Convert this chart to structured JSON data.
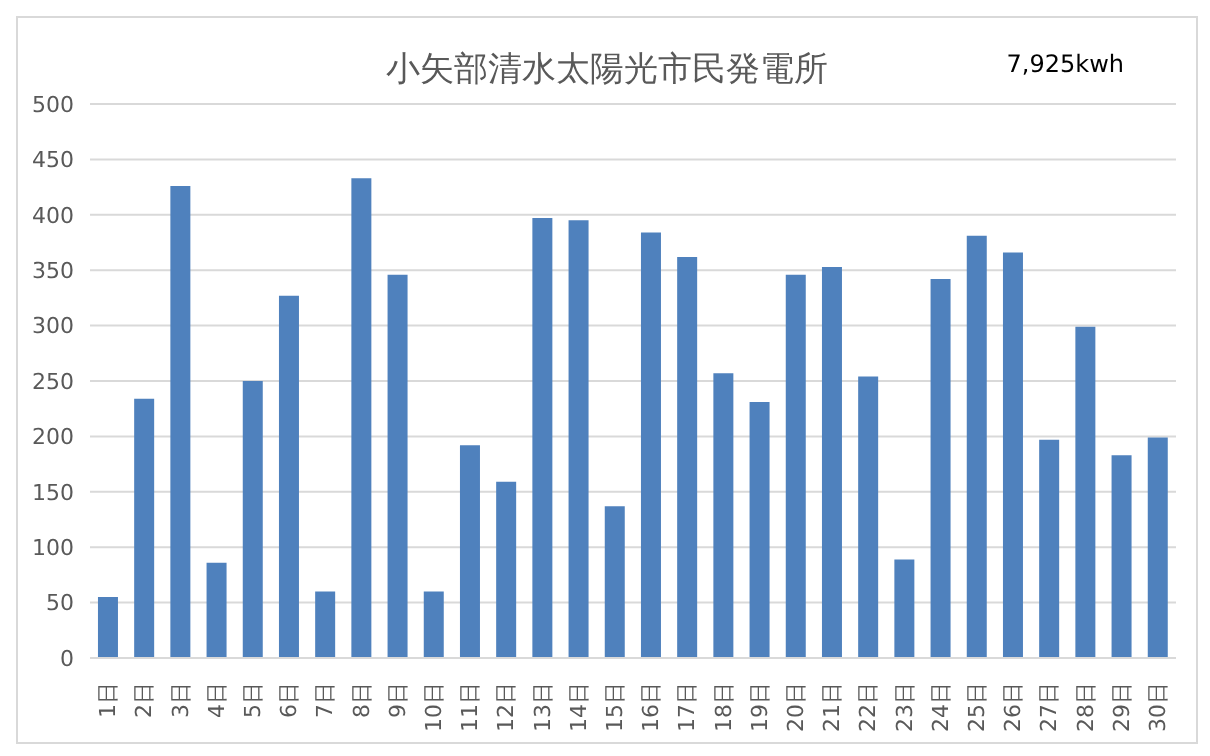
{
  "chart_data": {
    "type": "bar",
    "title": "小矢部清水太陽光市民発電所",
    "annotations": [
      "7,925kwh"
    ],
    "categories": [
      "1日",
      "2日",
      "3日",
      "4日",
      "5日",
      "6日",
      "7日",
      "8日",
      "9日",
      "10日",
      "11日",
      "12日",
      "13日",
      "14日",
      "15日",
      "16日",
      "17日",
      "18日",
      "19日",
      "20日",
      "21日",
      "22日",
      "23日",
      "24日",
      "25日",
      "26日",
      "27日",
      "28日",
      "29日",
      "30日"
    ],
    "values": [
      55,
      234,
      426,
      86,
      250,
      327,
      60,
      433,
      346,
      60,
      192,
      159,
      397,
      395,
      137,
      384,
      362,
      257,
      231,
      346,
      353,
      254,
      89,
      342,
      381,
      366,
      197,
      299,
      183,
      199
    ],
    "color": "#4f81bd",
    "ylim": [
      0,
      500
    ],
    "yticks": [
      0,
      50,
      100,
      150,
      200,
      250,
      300,
      350,
      400,
      450,
      500
    ],
    "grid": "y"
  }
}
